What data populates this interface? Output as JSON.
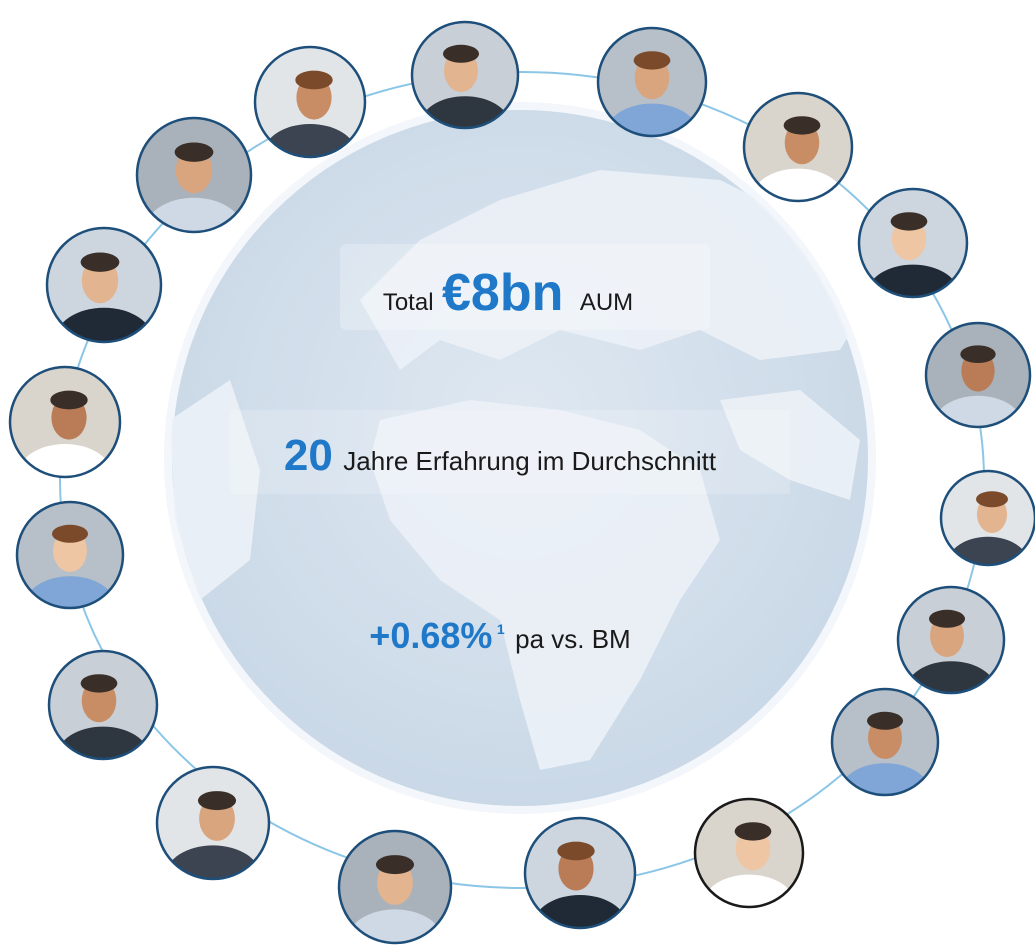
{
  "headline": {
    "prefix": "Total",
    "value": "€8bn",
    "suffix": "AUM"
  },
  "experience": {
    "value": "20",
    "text": "Jahre Erfahrung im Durchschnitt"
  },
  "performance": {
    "value": "+0.68%",
    "footnote": "1",
    "text": "pa vs. BM"
  }
}
